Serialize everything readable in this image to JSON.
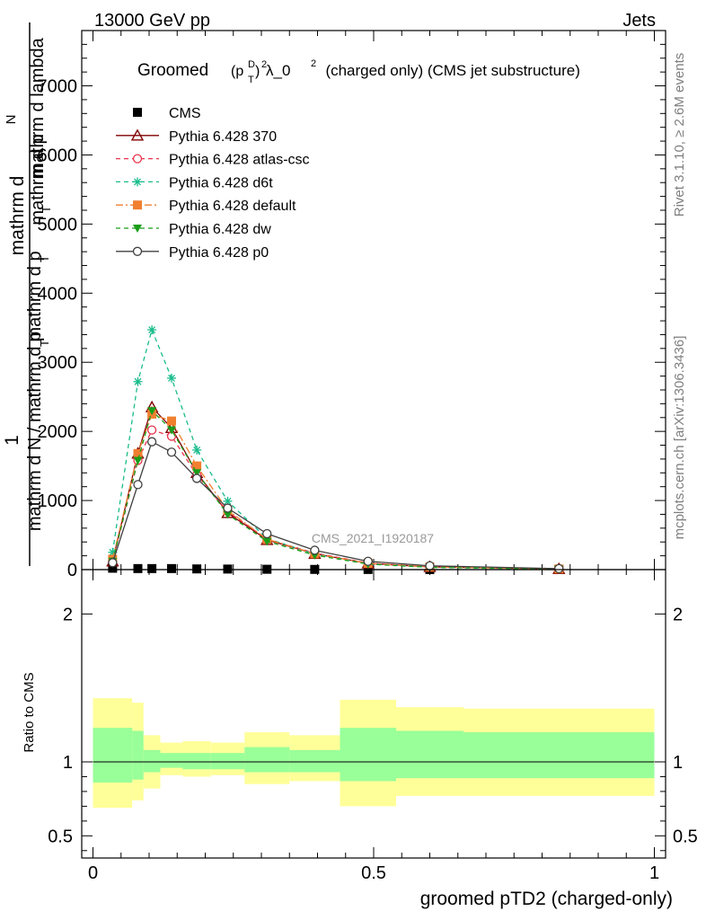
{
  "header": {
    "left": "13000 GeV pp",
    "right": "Jets"
  },
  "title": {
    "prefix": "Groomed",
    "expr": "(p",
    "sup_D": "D",
    "sub_T": "T",
    "close": ")",
    "sq": "2",
    "lambda_part": " λ_0",
    "sq2": "2",
    "suffix": "  (charged only) (CMS jet substructure)"
  },
  "side_labels": {
    "rivet": "Rivet 3.1.10, ≥ 2.6M events",
    "mcplots": "mcplots.cern.ch [arXiv:1306.3436]"
  },
  "watermark": "CMS_2021_I1920187",
  "ylabel_main": {
    "line1": "mathrm d²N",
    "line1b": "1",
    "line2": "mathrm d N / mathrm d p_T mathrm d p_T mathrm d lambda"
  },
  "ylabel_main_parts": {
    "num_top": "mathrm d",
    "num_N": "N",
    "den_top": "mathrm d p",
    "den_mid": "T",
    "den_rest": " mathrm d lambda",
    "one": "1",
    "frac2": "mathrm d N / mathrm d p",
    "frac2_sub": "T",
    "frac2_rest": " mathrm d p",
    "frac2_sub2": "T"
  },
  "ylabel_ratio": "Ratio to CMS",
  "xlabel": "groomed pTD2 (charged-only)",
  "legend": [
    {
      "label": "CMS",
      "color": "#000000",
      "marker": "square-filled",
      "dash": "none"
    },
    {
      "label": "Pythia 6.428 370",
      "color": "#800000",
      "marker": "triangle-open",
      "dash": "solid"
    },
    {
      "label": "Pythia 6.428 atlas-csc",
      "color": "#e8334d",
      "marker": "circle-open",
      "dash": "dashed"
    },
    {
      "label": "Pythia 6.428 d6t",
      "color": "#1abc8c",
      "marker": "star",
      "dash": "dashed"
    },
    {
      "label": "Pythia 6.428 default",
      "color": "#f07f30",
      "marker": "square-filled",
      "dash": "dashdot"
    },
    {
      "label": "Pythia 6.428 dw",
      "color": "#1a9e1a",
      "marker": "triangle-down-filled",
      "dash": "dashed"
    },
    {
      "label": "Pythia 6.428 p0",
      "color": "#404040",
      "marker": "circle-open",
      "dash": "solid"
    }
  ],
  "chart_data": {
    "type": "line",
    "x": [
      0.035,
      0.08,
      0.105,
      0.14,
      0.185,
      0.24,
      0.31,
      0.395,
      0.49,
      0.6,
      0.83
    ],
    "ylim": [
      0,
      7800
    ],
    "xlim": [
      -0.02,
      1.02
    ],
    "ratio_ylim": [
      0.35,
      2.3
    ],
    "main_yticks": [
      "0",
      "1000",
      "2000",
      "3000",
      "4000",
      "5000",
      "6000",
      "7000"
    ],
    "main_ytick_values": [
      0,
      1000,
      2000,
      3000,
      4000,
      5000,
      6000,
      7000
    ],
    "ratio_yticks": [
      "0.5",
      "1",
      "2"
    ],
    "ratio_ytick_values": [
      0.5,
      1,
      2
    ],
    "xticks": [
      "0",
      "0.5",
      "1"
    ],
    "xtick_values": [
      0,
      0.5,
      1
    ],
    "series": [
      {
        "name": "CMS",
        "values": [
          20,
          15,
          15,
          15,
          10,
          8,
          5,
          3,
          2,
          1,
          0.5
        ]
      },
      {
        "name": "Pythia 6.428 370",
        "values": [
          120,
          1680,
          2350,
          2050,
          1400,
          820,
          430,
          230,
          90,
          40,
          10
        ]
      },
      {
        "name": "Pythia 6.428 atlas-csc",
        "values": [
          110,
          1580,
          2020,
          1930,
          1370,
          840,
          440,
          240,
          95,
          40,
          10
        ]
      },
      {
        "name": "Pythia 6.428 d6t",
        "values": [
          250,
          2720,
          3470,
          2770,
          1730,
          990,
          450,
          225,
          85,
          35,
          8
        ]
      },
      {
        "name": "Pythia 6.428 default",
        "values": [
          150,
          1680,
          2250,
          2150,
          1500,
          860,
          440,
          230,
          90,
          38,
          9
        ]
      },
      {
        "name": "Pythia 6.428 dw",
        "values": [
          120,
          1580,
          2300,
          2020,
          1400,
          800,
          410,
          210,
          80,
          32,
          7
        ]
      },
      {
        "name": "Pythia 6.428 p0",
        "values": [
          100,
          1230,
          1850,
          1700,
          1320,
          890,
          520,
          280,
          120,
          55,
          15
        ]
      }
    ],
    "ratio_bands": {
      "edges": [
        0.0,
        0.07,
        0.09,
        0.12,
        0.16,
        0.21,
        0.27,
        0.35,
        0.44,
        0.54,
        0.66,
        1.0
      ],
      "yellow_lo": [
        0.69,
        0.74,
        0.82,
        0.91,
        0.9,
        0.91,
        0.85,
        0.87,
        0.7,
        0.77,
        0.77
      ],
      "yellow_hi": [
        1.43,
        1.4,
        1.18,
        1.13,
        1.14,
        1.13,
        1.2,
        1.18,
        1.42,
        1.37,
        1.36
      ],
      "green_lo": [
        0.86,
        0.88,
        0.93,
        0.96,
        0.95,
        0.95,
        0.93,
        0.93,
        0.87,
        0.89,
        0.89
      ],
      "green_hi": [
        1.23,
        1.21,
        1.08,
        1.06,
        1.06,
        1.06,
        1.1,
        1.08,
        1.23,
        1.21,
        1.2
      ]
    },
    "band_colors": {
      "yellow": "#ffff99",
      "green": "#99ff99"
    }
  }
}
